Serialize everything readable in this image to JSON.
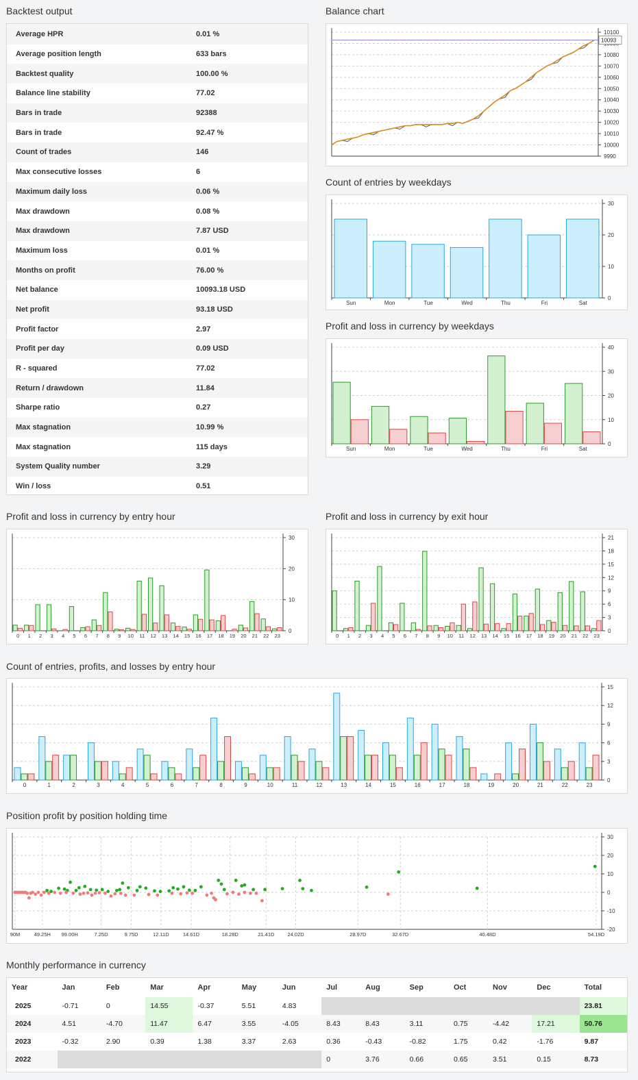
{
  "backtest": {
    "title": "Backtest output",
    "rows": [
      {
        "label": "Average HPR",
        "value": "0.01 %"
      },
      {
        "label": "Average position length",
        "value": "633 bars"
      },
      {
        "label": "Backtest quality",
        "value": "100.00 %"
      },
      {
        "label": "Balance line stability",
        "value": "77.02"
      },
      {
        "label": "Bars in trade",
        "value": "92388"
      },
      {
        "label": "Bars in trade",
        "value": "92.47 %"
      },
      {
        "label": "Count of trades",
        "value": "146"
      },
      {
        "label": "Max consecutive losses",
        "value": "6"
      },
      {
        "label": "Maximum daily loss",
        "value": "0.06 %"
      },
      {
        "label": "Max drawdown",
        "value": "0.08 %"
      },
      {
        "label": "Max drawdown",
        "value": "7.87 USD"
      },
      {
        "label": "Maximum loss",
        "value": "0.01 %"
      },
      {
        "label": "Months on profit",
        "value": "76.00 %"
      },
      {
        "label": "Net balance",
        "value": "10093.18 USD"
      },
      {
        "label": "Net profit",
        "value": "93.18 USD"
      },
      {
        "label": "Profit factor",
        "value": "2.97"
      },
      {
        "label": "Profit per day",
        "value": "0.09 USD"
      },
      {
        "label": "R - squared",
        "value": "77.02"
      },
      {
        "label": "Return / drawdown",
        "value": "11.84"
      },
      {
        "label": "Sharpe ratio",
        "value": "0.27"
      },
      {
        "label": "Max stagnation",
        "value": "10.99 %"
      },
      {
        "label": "Max stagnation",
        "value": "115 days"
      },
      {
        "label": "System Quality number",
        "value": "3.29"
      },
      {
        "label": "Win / loss",
        "value": "0.51"
      }
    ]
  },
  "titles": {
    "balance": "Balance chart",
    "weekday_count": "Count of entries by weekdays",
    "weekday_pl": "Profit and loss in currency by weekdays",
    "entry_hour_pl": "Profit and loss in currency by entry hour",
    "exit_hour_pl": "Profit and loss in currency by exit hour",
    "hour_counts": "Count of entries, profits, and losses by entry hour",
    "holding": "Position profit by position holding time",
    "monthly": "Monthly performance in currency"
  },
  "colors": {
    "blue_fill": "#cdeefd",
    "blue_stroke": "#2aa7e0",
    "green_fill": "#d3f0d0",
    "green_stroke": "#2c9a2c",
    "red_fill": "#f7cfd0",
    "red_stroke": "#d94848",
    "balance_line": "#d98a1e",
    "balance_ref": "#555566"
  },
  "chart_data": [
    {
      "type": "line",
      "title": "Balance chart",
      "ylim": [
        9990,
        10100
      ],
      "yticks": [
        9990,
        10000,
        10010,
        10020,
        10030,
        10040,
        10050,
        10060,
        10070,
        10080,
        10090,
        10100
      ],
      "last_value_label": "10093",
      "series": [
        {
          "values": [
            10000,
            10003,
            10004,
            10005,
            10006,
            10007,
            10009,
            10010,
            10011,
            10012,
            10013,
            10014,
            10015,
            10016,
            10017,
            10017,
            10018,
            10018,
            10018,
            10018,
            10018,
            10018,
            10019,
            10019,
            10020,
            10019,
            10021,
            10023,
            10026,
            10030,
            10034,
            10038,
            10041,
            10044,
            10048,
            10050,
            10053,
            10056,
            10060,
            10064,
            10067,
            10070,
            10072,
            10075,
            10078,
            10080,
            10082,
            10085,
            10088,
            10090,
            10093
          ]
        }
      ]
    },
    {
      "type": "bar",
      "title": "Count of entries by weekdays",
      "categories": [
        "Sun",
        "Mon",
        "Tue",
        "Wed",
        "Thu",
        "Fri",
        "Sat"
      ],
      "values": [
        25,
        18,
        17,
        16,
        25,
        20,
        25
      ],
      "ylim": [
        0,
        30
      ],
      "yticks": [
        0,
        10,
        20,
        30
      ]
    },
    {
      "type": "bar",
      "title": "Profit and loss in currency by weekdays",
      "categories": [
        "Sun",
        "Mon",
        "Tue",
        "Wed",
        "Thu",
        "Fri",
        "Sat"
      ],
      "series": [
        {
          "values": [
            25.5,
            15.5,
            11.3,
            10.6,
            36.4,
            16.8,
            25
          ]
        },
        {
          "values": [
            10,
            6,
            4.5,
            1,
            13.5,
            8.5,
            5
          ]
        }
      ],
      "ylim": [
        0,
        40
      ],
      "yticks": [
        0,
        10,
        20,
        30,
        40
      ]
    },
    {
      "type": "bar",
      "title": "Profit and loss in currency by entry hour",
      "categories": [
        "0",
        "1",
        "2",
        "3",
        "4",
        "5",
        "6",
        "7",
        "8",
        "9",
        "10",
        "11",
        "12",
        "13",
        "14",
        "15",
        "16",
        "17",
        "18",
        "19",
        "20",
        "21",
        "22",
        "23"
      ],
      "series": [
        {
          "values": [
            1.8,
            1.8,
            8.4,
            8.4,
            0,
            7.8,
            1,
            3.5,
            12.3,
            0.5,
            0.8,
            16,
            17,
            14.5,
            2.5,
            1.2,
            5.1,
            19.6,
            3.2,
            0,
            1.8,
            9.4,
            3.8,
            0.6
          ]
        },
        {
          "values": [
            0.8,
            1.7,
            0,
            0.6,
            0.4,
            0,
            1.3,
            1.7,
            6.1,
            0.3,
            0.4,
            5.3,
            2.5,
            5.1,
            1.4,
            0.5,
            3.7,
            3.5,
            4.9,
            0.5,
            0.9,
            5.5,
            1.3,
            1
          ]
        }
      ],
      "ylim": [
        0,
        30
      ],
      "yticks": [
        0,
        10,
        20,
        30
      ]
    },
    {
      "type": "bar",
      "title": "Profit and loss in currency by exit hour",
      "categories": [
        "0",
        "1",
        "2",
        "3",
        "4",
        "5",
        "6",
        "7",
        "8",
        "9",
        "10",
        "11",
        "12",
        "13",
        "14",
        "15",
        "16",
        "17",
        "18",
        "19",
        "20",
        "21",
        "22",
        "23"
      ],
      "series": [
        {
          "values": [
            9,
            0.5,
            11.2,
            1.2,
            14.5,
            1.8,
            6.2,
            1.8,
            17.9,
            1.2,
            1,
            1.2,
            0.5,
            14.2,
            10.6,
            0.5,
            8.3,
            3.3,
            9.4,
            2.3,
            8.6,
            11.1,
            8.8,
            0.5
          ]
        },
        {
          "values": [
            0,
            0.7,
            0,
            6.2,
            0,
            1.4,
            0,
            0.3,
            1.1,
            0.7,
            1.8,
            6,
            6.5,
            1.5,
            1.6,
            1.6,
            3.3,
            3.9,
            1.4,
            1.9,
            1.2,
            1.1,
            1.1,
            2.3
          ]
        }
      ],
      "ylim": [
        0,
        21
      ],
      "yticks": [
        0,
        3,
        6,
        9,
        12,
        15,
        18,
        21
      ]
    },
    {
      "type": "bar",
      "title": "Count of entries, profits, and losses by entry hour",
      "categories": [
        "0",
        "1",
        "2",
        "3",
        "4",
        "5",
        "6",
        "7",
        "8",
        "9",
        "10",
        "11",
        "12",
        "13",
        "14",
        "15",
        "16",
        "17",
        "18",
        "19",
        "20",
        "21",
        "22",
        "23"
      ],
      "series": [
        {
          "values": [
            2,
            7,
            4,
            6,
            3,
            5,
            3,
            5,
            10,
            3,
            4,
            7,
            5,
            14,
            8,
            6,
            10,
            9,
            7,
            1,
            6,
            9,
            5,
            6
          ]
        },
        {
          "values": [
            1,
            3,
            4,
            3,
            1,
            4,
            2,
            2,
            3,
            2,
            2,
            4,
            3,
            7,
            4,
            4,
            4,
            5,
            5,
            0,
            1,
            6,
            2,
            2
          ]
        },
        {
          "values": [
            1,
            4,
            0,
            3,
            2,
            1,
            1,
            4,
            7,
            1,
            2,
            3,
            2,
            7,
            4,
            2,
            6,
            4,
            2,
            1,
            5,
            3,
            3,
            4
          ]
        }
      ],
      "ylim": [
        0,
        15
      ],
      "yticks": [
        0,
        3,
        6,
        9,
        12,
        15
      ]
    },
    {
      "type": "scatter",
      "title": "Position profit by position holding time",
      "ylim": [
        -20,
        30
      ],
      "yticks": [
        -20,
        -10,
        0,
        10,
        20,
        30
      ],
      "xtick_labels": [
        "90M",
        "49.25H",
        "99.00H",
        "7.25D",
        "9.75D",
        "12.11D",
        "14.61D",
        "18.28D",
        "21.41D",
        "24.02D",
        "28.97D",
        "32.67D",
        "40.48D",
        "54.19D"
      ],
      "xtick_pos": [
        0,
        0.047,
        0.094,
        0.148,
        0.2,
        0.251,
        0.303,
        0.37,
        0.432,
        0.483,
        0.59,
        0.663,
        0.813,
        1
      ],
      "series": [
        {
          "points": [
            [
              0.055,
              1
            ],
            [
              0.062,
              0.5
            ],
            [
              0.075,
              2.2
            ],
            [
              0.085,
              1.8
            ],
            [
              0.09,
              1
            ],
            [
              0.095,
              5.5
            ],
            [
              0.105,
              1
            ],
            [
              0.11,
              2.5
            ],
            [
              0.12,
              3.2
            ],
            [
              0.13,
              1.5
            ],
            [
              0.14,
              1.2
            ],
            [
              0.15,
              1.5
            ],
            [
              0.16,
              0.5
            ],
            [
              0.175,
              1
            ],
            [
              0.18,
              1.5
            ],
            [
              0.185,
              5
            ],
            [
              0.195,
              2.5
            ],
            [
              0.21,
              1
            ],
            [
              0.215,
              3
            ],
            [
              0.225,
              2.3
            ],
            [
              0.24,
              0.8
            ],
            [
              0.25,
              0.5
            ],
            [
              0.265,
              0.8
            ],
            [
              0.272,
              2.5
            ],
            [
              0.28,
              1.8
            ],
            [
              0.29,
              3
            ],
            [
              0.3,
              1.2
            ],
            [
              0.31,
              1
            ],
            [
              0.32,
              3
            ],
            [
              0.35,
              6.5
            ],
            [
              0.355,
              4.5
            ],
            [
              0.36,
              1.5
            ],
            [
              0.38,
              6.5
            ],
            [
              0.39,
              3.5
            ],
            [
              0.395,
              4
            ],
            [
              0.41,
              1.5
            ],
            [
              0.43,
              1.5
            ],
            [
              0.46,
              2
            ],
            [
              0.49,
              6.5
            ],
            [
              0.495,
              2
            ],
            [
              0.51,
              1
            ],
            [
              0.605,
              2.8
            ],
            [
              0.66,
              11
            ],
            [
              0.795,
              2.2
            ],
            [
              0.998,
              14
            ]
          ]
        },
        {
          "points": [
            [
              0.0,
              0
            ],
            [
              0.003,
              0
            ],
            [
              0.006,
              0
            ],
            [
              0.009,
              0
            ],
            [
              0.012,
              0
            ],
            [
              0.015,
              0
            ],
            [
              0.018,
              0
            ],
            [
              0.021,
              -0.5
            ],
            [
              0.024,
              -3
            ],
            [
              0.027,
              -0.5
            ],
            [
              0.03,
              0
            ],
            [
              0.035,
              -1
            ],
            [
              0.04,
              0
            ],
            [
              0.045,
              -1.5
            ],
            [
              0.05,
              0
            ],
            [
              0.058,
              -0.5
            ],
            [
              0.068,
              0
            ],
            [
              0.078,
              -0.5
            ],
            [
              0.088,
              0
            ],
            [
              0.1,
              -0.5
            ],
            [
              0.112,
              -1
            ],
            [
              0.118,
              -0.5
            ],
            [
              0.125,
              -0.3
            ],
            [
              0.132,
              -1.5
            ],
            [
              0.138,
              -0.5
            ],
            [
              0.145,
              -0.2
            ],
            [
              0.155,
              -0.5
            ],
            [
              0.165,
              -2
            ],
            [
              0.172,
              -0.8
            ],
            [
              0.182,
              -0.5
            ],
            [
              0.19,
              -1.5
            ],
            [
              0.205,
              -1.5
            ],
            [
              0.23,
              -1.2
            ],
            [
              0.245,
              -1.5
            ],
            [
              0.27,
              -0.5
            ],
            [
              0.285,
              -0.8
            ],
            [
              0.296,
              -0.3
            ],
            [
              0.305,
              -0.5
            ],
            [
              0.33,
              -1.5
            ],
            [
              0.338,
              -0.5
            ],
            [
              0.342,
              -3
            ],
            [
              0.345,
              -4
            ],
            [
              0.365,
              -0.8
            ],
            [
              0.375,
              0
            ],
            [
              0.385,
              -1
            ],
            [
              0.395,
              0
            ],
            [
              0.405,
              -0.5
            ],
            [
              0.415,
              -0.5
            ],
            [
              0.425,
              -4.5
            ],
            [
              0.642,
              -1
            ]
          ]
        }
      ]
    }
  ],
  "monthly": {
    "headers": [
      "Year",
      "Jan",
      "Feb",
      "Mar",
      "Apr",
      "May",
      "Jun",
      "Jul",
      "Aug",
      "Sep",
      "Oct",
      "Nov",
      "Dec",
      "Total"
    ],
    "rows": [
      {
        "year": "2025",
        "cells": [
          "-0.71",
          "0",
          "14.55",
          "-0.37",
          "5.51",
          "4.83",
          "",
          "",
          "",
          "",
          "",
          "",
          ""
        ],
        "total": "23.81"
      },
      {
        "year": "2024",
        "cells": [
          "4.51",
          "-4.70",
          "11.47",
          "6.47",
          "3.55",
          "-4.05",
          "8.43",
          "8.43",
          "3.11",
          "0.75",
          "-4.42",
          "17.21"
        ],
        "total": "50.76"
      },
      {
        "year": "2023",
        "cells": [
          "-0.32",
          "2.90",
          "0.39",
          "1.38",
          "3.37",
          "2.63",
          "0.36",
          "-0.43",
          "-0.82",
          "1.75",
          "0.42",
          "-1.76"
        ],
        "total": "9.87"
      },
      {
        "year": "2022",
        "cells": [
          "",
          "",
          "",
          "",
          "",
          "",
          "0",
          "3.76",
          "0.66",
          "0.65",
          "3.51",
          "0.15"
        ],
        "total": "8.73"
      }
    ]
  }
}
